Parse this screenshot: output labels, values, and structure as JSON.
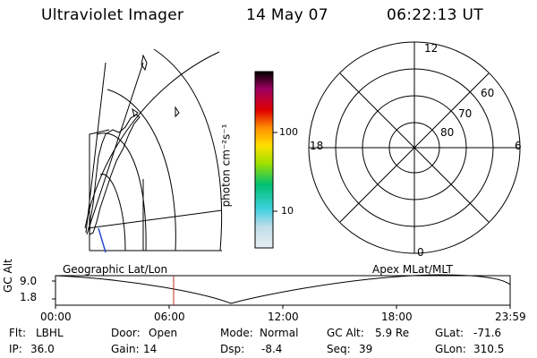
{
  "header": {
    "instrument": "Ultraviolet Imager",
    "date": "14 May 07",
    "time": "06:22:13 UT"
  },
  "colorbar": {
    "unit_label": "photon cm⁻²s⁻¹",
    "ticks": [
      "100",
      "10"
    ],
    "colors": [
      "#d9e6ee",
      "#3ed0e0",
      "#00c070",
      "#a0e000",
      "#ffe000",
      "#ff9000",
      "#e00000",
      "#a00060",
      "#000000"
    ]
  },
  "polar": {
    "mlt_labels": [
      "12",
      "18",
      "6",
      "0"
    ],
    "mlat_labels": [
      "60",
      "70",
      "80"
    ]
  },
  "map": {
    "left_label": "Geographic Lat/Lon",
    "right_label": "Apex MLat/MLT"
  },
  "altitude_plot": {
    "ylabel": "GC Alt",
    "y_ticks": [
      "9.0",
      "1.8"
    ],
    "x_ticks": [
      "00:00",
      "06:00",
      "12:00",
      "18:00",
      "23:59"
    ],
    "marker_color": "#c03020"
  },
  "footer": [
    {
      "key": "Flt:",
      "value": "LBHL"
    },
    {
      "key": "Door:",
      "value": "Open"
    },
    {
      "key": "Mode:",
      "value": "Normal"
    },
    {
      "key": "GC Alt:",
      "value": "5.9 Re"
    },
    {
      "key": "GLat:",
      "value": "-71.6"
    },
    {
      "key": "IP:",
      "value": "36.0"
    },
    {
      "key": "Gain:",
      "value": "14"
    },
    {
      "key": "Dsp:",
      "value": "-8.4"
    },
    {
      "key": "Seq:",
      "value": "39"
    },
    {
      "key": "GLon:",
      "value": "310.5"
    }
  ]
}
